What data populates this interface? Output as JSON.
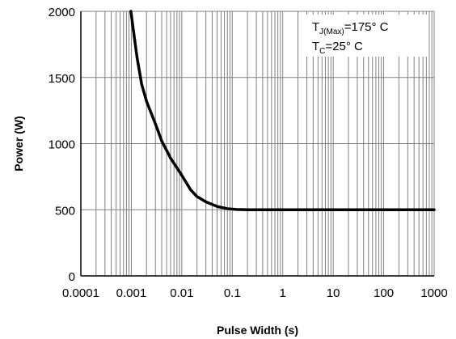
{
  "chart_data": {
    "type": "line",
    "xlabel": "Pulse Width (s)",
    "ylabel": "Power (W)",
    "x_scale": "log",
    "xlim": [
      0.0001,
      1000
    ],
    "ylim": [
      0,
      2000
    ],
    "x_ticks": [
      "0.0001",
      "0.001",
      "0.01",
      "0.1",
      "1",
      "10",
      "100",
      "1000"
    ],
    "y_ticks": [
      "0",
      "500",
      "1000",
      "1500",
      "2000"
    ],
    "grid": true,
    "annotation": {
      "line1_prefix": "T",
      "line1_sub": "J(Max)",
      "line1_suffix": "=175° C",
      "line2_prefix": "T",
      "line2_sub": "C",
      "line2_suffix": "=25° C",
      "position": "top-right"
    },
    "series": [
      {
        "color": "#000000",
        "points": [
          [
            0.00098,
            2000
          ],
          [
            0.00115,
            1800
          ],
          [
            0.0013,
            1650
          ],
          [
            0.0016,
            1450
          ],
          [
            0.002,
            1320
          ],
          [
            0.003,
            1150
          ],
          [
            0.004,
            1020
          ],
          [
            0.006,
            890
          ],
          [
            0.01,
            760
          ],
          [
            0.015,
            650
          ],
          [
            0.02,
            600
          ],
          [
            0.03,
            560
          ],
          [
            0.05,
            525
          ],
          [
            0.08,
            508
          ],
          [
            0.12,
            502
          ],
          [
            0.2,
            500
          ],
          [
            1,
            500
          ],
          [
            10,
            500
          ],
          [
            100,
            500
          ],
          [
            1000,
            500
          ]
        ]
      }
    ]
  }
}
